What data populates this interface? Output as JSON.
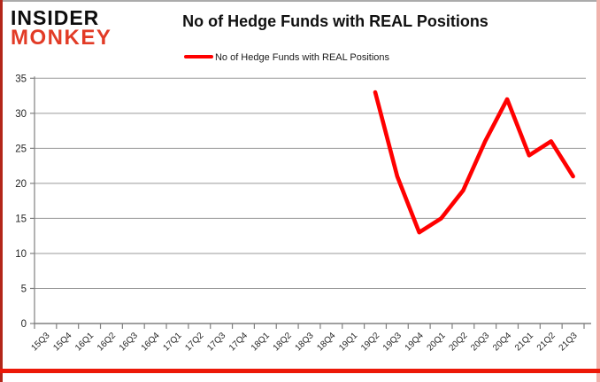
{
  "logo": {
    "top": "INSIDER",
    "bottom": "MONKEY"
  },
  "title": "No of Hedge Funds with REAL Positions",
  "legend": {
    "label": "No of Hedge Funds with REAL Positions",
    "color": "#ff0000"
  },
  "chart_data": {
    "type": "line",
    "title": "No of Hedge Funds with REAL Positions",
    "categories": [
      "15Q3",
      "15Q4",
      "16Q1",
      "16Q2",
      "16Q3",
      "16Q4",
      "17Q1",
      "17Q2",
      "17Q3",
      "17Q4",
      "18Q1",
      "18Q2",
      "18Q3",
      "18Q4",
      "19Q1",
      "19Q2",
      "19Q3",
      "19Q4",
      "20Q1",
      "20Q2",
      "20Q3",
      "20Q4",
      "21Q1",
      "21Q2",
      "21Q3"
    ],
    "series": [
      {
        "name": "No of Hedge Funds with REAL Positions",
        "color": "#ff0000",
        "values": [
          null,
          null,
          null,
          null,
          null,
          null,
          null,
          null,
          null,
          null,
          null,
          null,
          null,
          null,
          null,
          33,
          21,
          13,
          15,
          19,
          26,
          32,
          24,
          26,
          21
        ]
      }
    ],
    "xlabel": "",
    "ylabel": "",
    "ylim": [
      0,
      35
    ],
    "ytick_interval": 5,
    "grid": true,
    "legend_position": "top",
    "gridline_color": "#9a9a9a",
    "axis_color": "#808080",
    "tick_label_color": "#262626"
  }
}
